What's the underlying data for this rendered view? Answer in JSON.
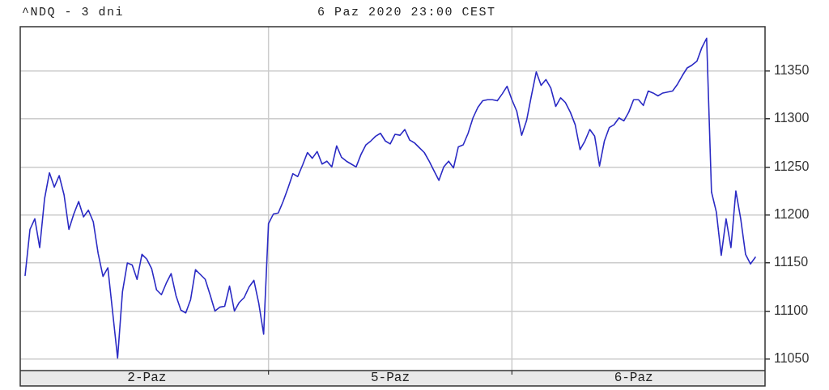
{
  "chart_data": {
    "type": "line",
    "title": "^NDQ - 3 dni",
    "subtitle": "6 Paz 2020 23:00 CEST",
    "color": "#2b2bc4",
    "marker": "none",
    "line_style": "solid",
    "grid": true,
    "ylim": [
      11038,
      11396
    ],
    "yticks": [
      11050,
      11100,
      11150,
      11200,
      11250,
      11300,
      11350
    ],
    "categories": [
      null,
      null,
      null,
      null,
      null,
      null,
      null,
      null,
      null,
      null,
      null,
      null,
      null,
      null,
      null,
      null,
      null,
      null,
      null,
      null,
      null,
      null,
      null,
      null,
      null,
      null,
      "2-Paz",
      null,
      null,
      null,
      null,
      null,
      null,
      null,
      null,
      null,
      null,
      null,
      null,
      null,
      null,
      null,
      null,
      null,
      null,
      null,
      null,
      null,
      null,
      null,
      null,
      null,
      null,
      null,
      null,
      null,
      null,
      null,
      null,
      null,
      null,
      null,
      null,
      null,
      null,
      null,
      null,
      null,
      null,
      null,
      null,
      null,
      null,
      null,
      null,
      null,
      "5-Paz",
      null,
      null,
      null,
      null,
      null,
      null,
      null,
      null,
      null,
      null,
      null,
      null,
      null,
      null,
      null,
      null,
      null,
      null,
      null,
      null,
      null,
      null,
      null,
      null,
      null,
      null,
      null,
      null,
      null,
      null,
      null,
      null,
      null,
      null,
      null,
      null,
      null,
      null,
      null,
      null,
      null,
      null,
      null,
      null,
      null,
      null,
      null,
      null,
      null,
      "6-Paz",
      null,
      null,
      null,
      null,
      null,
      null,
      null,
      null,
      null,
      null,
      null,
      null,
      null,
      null,
      null,
      null,
      null,
      null,
      null,
      null,
      null,
      null,
      null,
      null,
      null,
      null,
      null
    ],
    "values": [
      null,
      11137,
      11185,
      11196,
      11166,
      11217,
      11244,
      11229,
      11241,
      11221,
      11185,
      11201,
      11214,
      11198,
      11205,
      11193,
      11160,
      11136,
      11145,
      11098,
      11051,
      11120,
      11150,
      11148,
      11133,
      11159,
      11154,
      11144,
      11122,
      11117,
      11129,
      11139,
      11116,
      11101,
      11098,
      11112,
      11143,
      11138,
      11133,
      11117,
      11100,
      11104,
      11105,
      11126,
      11100,
      11109,
      11114,
      11125,
      11132,
      11108,
      11076,
      11191,
      11201,
      11202,
      11214,
      11228,
      11243,
      11240,
      11252,
      11265,
      11259,
      11266,
      11253,
      11256,
      11250,
      11272,
      11260,
      11256,
      11253,
      11250,
      11263,
      11273,
      11277,
      11282,
      11285,
      11277,
      11274,
      11284,
      11283,
      11289,
      11278,
      11275,
      11270,
      11265,
      11256,
      11246,
      11236,
      11250,
      11256,
      11249,
      11271,
      11273,
      11285,
      11301,
      11312,
      11319,
      11320,
      11320,
      11319,
      11326,
      11334,
      11320,
      11308,
      11283,
      11298,
      11324,
      11349,
      11335,
      11341,
      11332,
      11313,
      11322,
      11317,
      11307,
      11294,
      11268,
      11277,
      11289,
      11282,
      11251,
      11277,
      11291,
      11294,
      11301,
      11298,
      11307,
      11320,
      11320,
      11314,
      11329,
      11327,
      11324,
      11327,
      11328,
      11329,
      11336,
      11345,
      11353,
      11356,
      11360,
      11374,
      11384,
      11224,
      11203,
      11158,
      11196,
      11166,
      11225,
      11196,
      11159,
      11149,
      11156,
      null,
      null
    ]
  }
}
